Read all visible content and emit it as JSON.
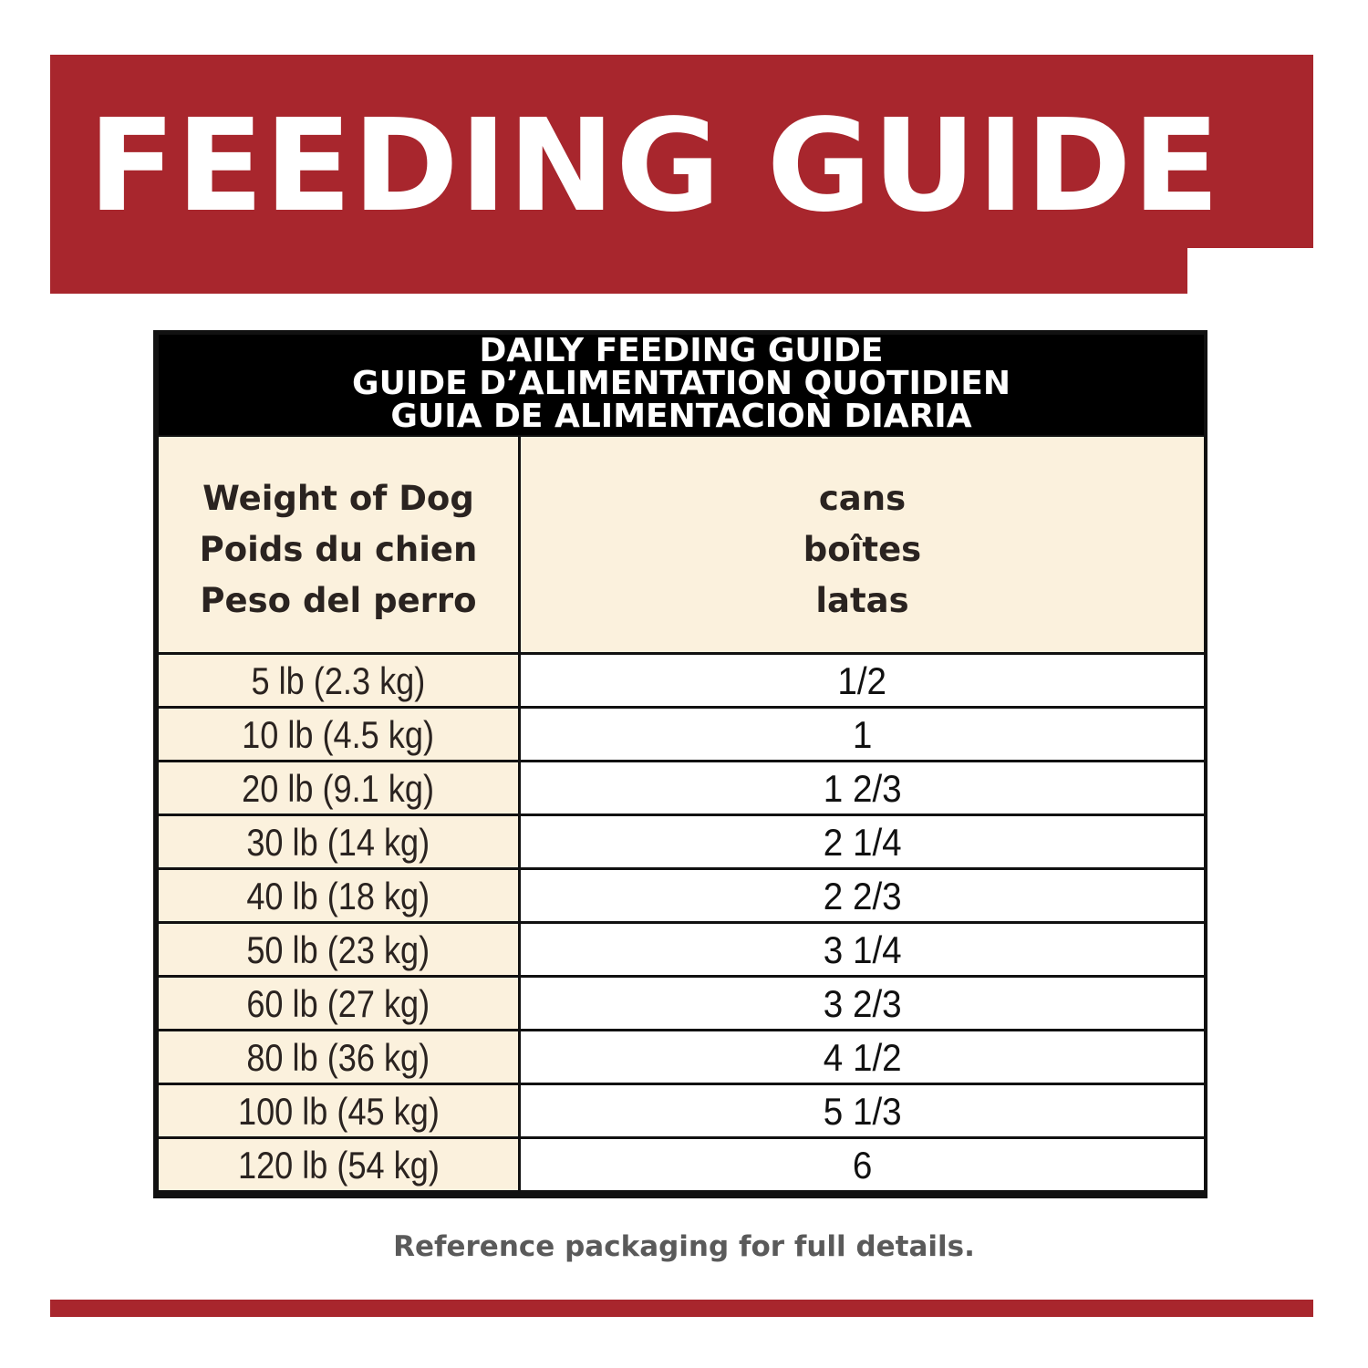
{
  "banner": {
    "title": "FEEDING GUIDE"
  },
  "table": {
    "header_lines": [
      "DAILY FEEDING GUIDE",
      "GUIDE D’ALIMENTATION QUOTIDIEN",
      "GUIA DE ALIMENTACION DIARIA"
    ],
    "weight_header": [
      "Weight of Dog",
      "Poids du chien",
      "Peso del perro"
    ],
    "amount_header": [
      "cans",
      "boîtes",
      "latas"
    ],
    "rows": [
      {
        "weight": "5 lb (2.3 kg)",
        "cans": "1/2"
      },
      {
        "weight": "10 lb (4.5 kg)",
        "cans": "1"
      },
      {
        "weight": "20 lb (9.1 kg)",
        "cans": "1 2/3"
      },
      {
        "weight": "30 lb (14 kg)",
        "cans": "2 1/4"
      },
      {
        "weight": "40 lb (18 kg)",
        "cans": "2 2/3"
      },
      {
        "weight": "50 lb (23 kg)",
        "cans": "3 1/4"
      },
      {
        "weight": "60 lb (27 kg)",
        "cans": "3 2/3"
      },
      {
        "weight": "80 lb (36 kg)",
        "cans": "4 1/2"
      },
      {
        "weight": "100 lb (45 kg)",
        "cans": "5 1/3"
      },
      {
        "weight": "120 lb (54 kg)",
        "cans": "6"
      }
    ]
  },
  "footnote": "Reference packaging for full details.",
  "colors": {
    "brand_red": "#a8262d",
    "header_black": "#000000",
    "cream": "#fbf1dd"
  }
}
